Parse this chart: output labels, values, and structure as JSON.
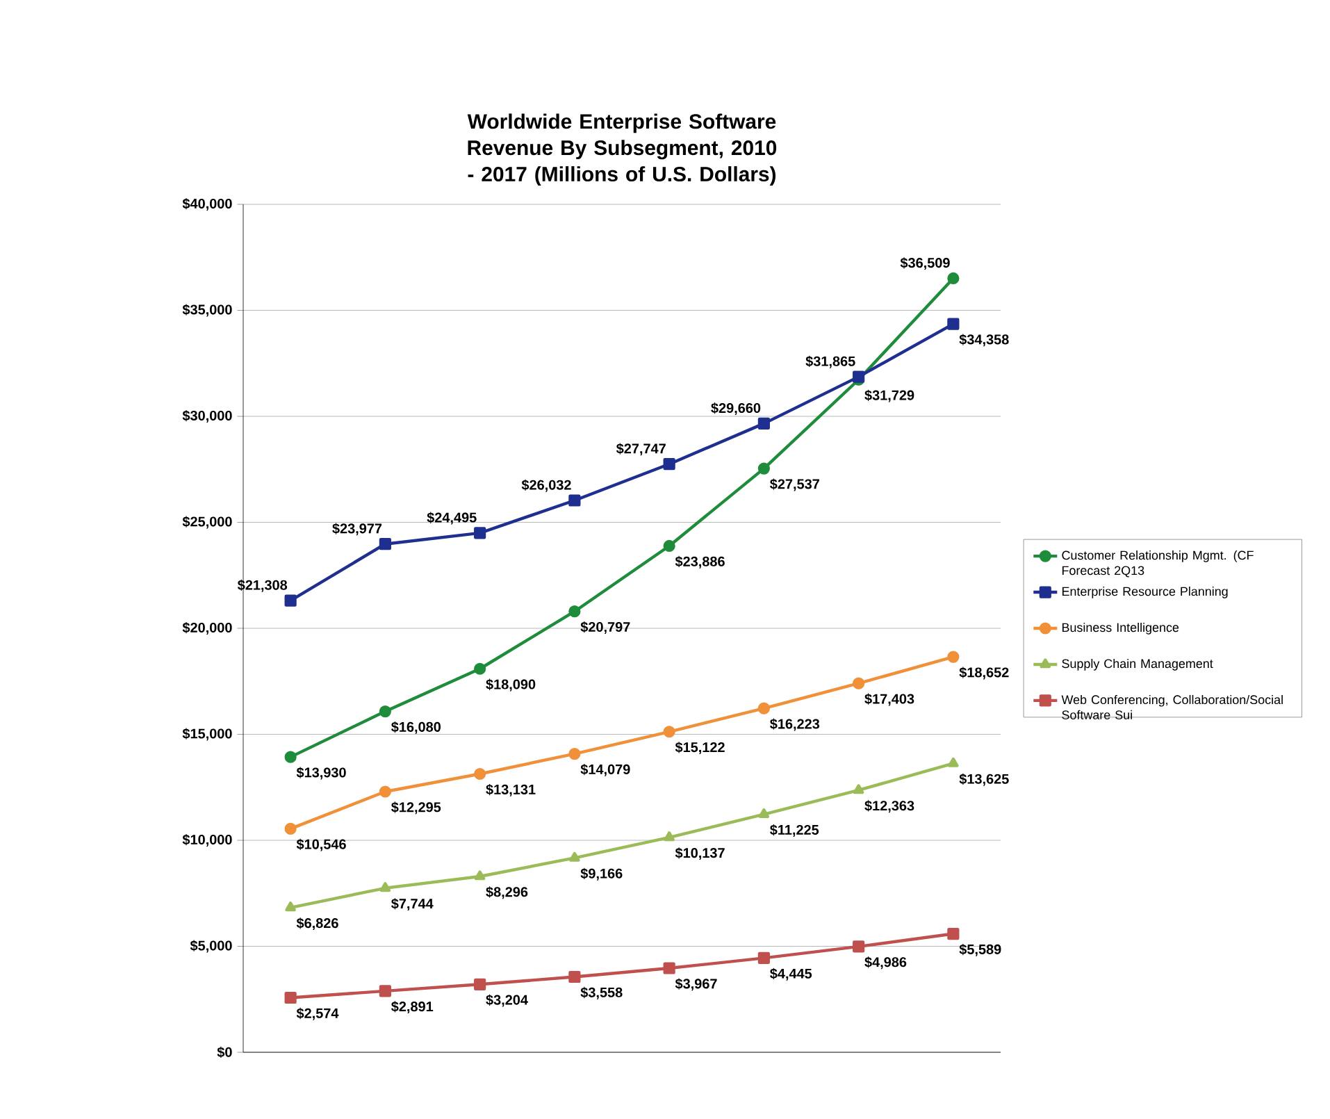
{
  "chart_data": {
    "type": "line",
    "title": "Worldwide Enterprise Software Revenue By Subsegment, 2010 - 2017 (Millions of U.S. Dollars)",
    "categories": [
      null,
      null,
      null,
      null,
      null,
      null,
      null,
      null
    ],
    "series": [
      {
        "name": "Customer Relationship Mgmt. (CF Forecast 2Q13",
        "color": "#1e8c3a",
        "marker": "circle",
        "values": [
          13930,
          16080,
          18090,
          20797,
          23886,
          27537,
          31729,
          36509
        ],
        "value_labels": [
          "$13,930",
          "$16,080",
          "$18,090",
          "$20,797",
          "$23,886",
          "$27,537",
          "$31,729",
          "$36,509"
        ]
      },
      {
        "name": "Enterprise Resource Planning",
        "color": "#1f2f8f",
        "marker": "square",
        "values": [
          21308,
          23977,
          24495,
          26032,
          27747,
          29660,
          31865,
          34358
        ],
        "value_labels": [
          "$21,308",
          "$23,977",
          "$24,495",
          "$26,032",
          "$27,747",
          "$29,660",
          "$31,865",
          "$34,358"
        ]
      },
      {
        "name": "Business Intelligence",
        "color": "#f0913a",
        "marker": "circle",
        "values": [
          10546,
          12295,
          13131,
          14079,
          15122,
          16223,
          17403,
          18652
        ],
        "value_labels": [
          "$10,546",
          "$12,295",
          "$13,131",
          "$14,079",
          "$15,122",
          "$16,223",
          "$17,403",
          "$18,652"
        ]
      },
      {
        "name": "Supply Chain Management",
        "color": "#9bbb59",
        "marker": "triangle",
        "values": [
          6826,
          7744,
          8296,
          9166,
          10137,
          11225,
          12363,
          13625
        ],
        "value_labels": [
          "$6,826",
          "$7,744",
          "$8,296",
          "$9,166",
          "$10,137",
          "$11,225",
          "$12,363",
          "$13,625"
        ]
      },
      {
        "name": "Web Conferencing, Collaboration/Social Software Sui",
        "color": "#c0504d",
        "marker": "square",
        "values": [
          2574,
          2891,
          3204,
          3558,
          3967,
          4445,
          4986,
          5589
        ],
        "value_labels": [
          "$2,574",
          "$2,891",
          "$3,204",
          "$3,558",
          "$3,967",
          "$4,445",
          "$4,986",
          "$5,589"
        ]
      }
    ],
    "ylim": [
      0,
      40000
    ],
    "yticks": [
      {
        "value": 0,
        "label": "$0"
      },
      {
        "value": 5000,
        "label": "$5,000"
      },
      {
        "value": 10000,
        "label": "$10,000"
      },
      {
        "value": 15000,
        "label": "$15,000"
      },
      {
        "value": 20000,
        "label": "$20,000"
      },
      {
        "value": 25000,
        "label": "$25,000"
      },
      {
        "value": 30000,
        "label": "$30,000"
      },
      {
        "value": 35000,
        "label": "$35,000"
      },
      {
        "value": 40000,
        "label": "$40,000"
      }
    ],
    "grid": "y",
    "legend": "right",
    "line_style": "solid"
  }
}
